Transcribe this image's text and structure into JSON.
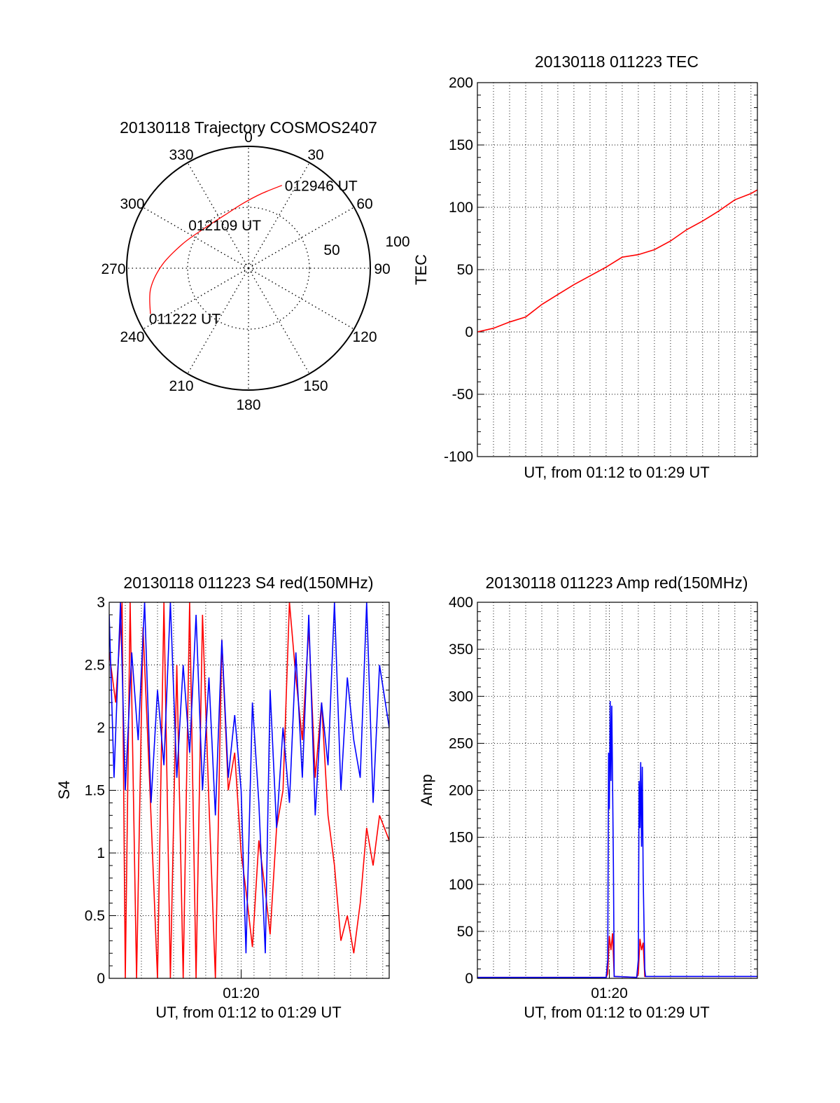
{
  "colors": {
    "red": "#ff0000",
    "blue": "#0000ff",
    "axis": "#000000"
  },
  "chart_data": [
    {
      "id": "trajectory",
      "type": "polar",
      "title": "20130118 Trajectory COSMOS2407",
      "azimuth_labels": [
        "0",
        "30",
        "60",
        "90",
        "120",
        "150",
        "180",
        "210",
        "240",
        "270",
        "300",
        "330"
      ],
      "radial_labels": [
        "50",
        "100"
      ],
      "radius_max": 90,
      "trajectory": [
        {
          "az": 245,
          "zen": 80
        },
        {
          "az": 258,
          "zen": 74
        },
        {
          "az": 272,
          "zen": 64
        },
        {
          "az": 290,
          "zen": 52
        },
        {
          "az": 312,
          "zen": 44
        },
        {
          "az": 336,
          "zen": 43
        },
        {
          "az": 355,
          "zen": 48
        },
        {
          "az": 10,
          "zen": 56
        },
        {
          "az": 22,
          "zen": 66
        }
      ],
      "annotations": [
        {
          "text": "012946 UT",
          "az": 22,
          "zen": 66
        },
        {
          "text": "012109 UT",
          "az": 336,
          "zen": 43
        },
        {
          "text": "011222 UT",
          "az": 245,
          "zen": 80
        }
      ]
    },
    {
      "id": "tec",
      "type": "line",
      "title": "20130118 011223 TEC",
      "xlabel": "UT, from 01:12 to 01:29 UT",
      "ylabel": "TEC",
      "xlim": [
        0,
        17.4
      ],
      "ylim": [
        -100,
        200
      ],
      "yticks": [
        -100,
        -50,
        0,
        50,
        100,
        150,
        200
      ],
      "x_major_ticks": [],
      "series": [
        {
          "color": "#ff0000",
          "x": [
            0,
            1,
            2,
            3,
            4,
            5,
            6,
            7,
            8,
            9,
            10,
            11,
            12,
            13,
            14,
            15,
            16,
            17,
            17.4
          ],
          "y": [
            0,
            3,
            8,
            12,
            22,
            30,
            38,
            45,
            52,
            60,
            62,
            66,
            73,
            82,
            89,
            97,
            106,
            111,
            114
          ]
        }
      ]
    },
    {
      "id": "s4",
      "type": "line",
      "title": "20130118 011223 S4 red(150MHz)",
      "xlabel": "UT, from 01:12 to 01:29 UT",
      "ylabel": "S4",
      "xlim": [
        0,
        17.4
      ],
      "ylim": [
        0,
        3
      ],
      "yticks": [
        "0",
        "0.5",
        "1",
        "1.5",
        "2",
        "2.5",
        "3"
      ],
      "x_major_ticks": [
        {
          "x": 8.2,
          "label": "01:20"
        }
      ],
      "series": [
        {
          "color": "#ff0000",
          "x": [
            0,
            0.4,
            0.8,
            1.0,
            1.3,
            1.7,
            2.1,
            2.5,
            3.0,
            3.4,
            3.8,
            4.2,
            4.6,
            5.0,
            5.4,
            5.8,
            6.2,
            6.6,
            7.0,
            7.4,
            7.8,
            8.2,
            8.5,
            8.9,
            9.3,
            9.7,
            10.0,
            10.4,
            10.8,
            11.2,
            11.6,
            12.0,
            12.4,
            12.8,
            13.2,
            13.6,
            14.0,
            14.4,
            14.8,
            15.2,
            15.6,
            16.0,
            16.4,
            16.8,
            17.4
          ],
          "y": [
            2.6,
            2.2,
            3.0,
            0.0,
            3.0,
            0.0,
            2.8,
            1.6,
            0.0,
            3.0,
            0.0,
            2.5,
            0.0,
            3.0,
            0.0,
            2.9,
            1.4,
            0.0,
            2.7,
            1.5,
            1.8,
            1.0,
            0.7,
            0.25,
            1.1,
            0.7,
            0.35,
            1.2,
            1.5,
            3.0,
            2.4,
            1.9,
            2.8,
            1.6,
            2.2,
            1.3,
            0.9,
            0.3,
            0.5,
            0.2,
            0.6,
            1.2,
            0.9,
            1.3,
            1.1
          ]
        },
        {
          "color": "#0000ff",
          "x": [
            0,
            0.3,
            0.7,
            1.0,
            1.4,
            1.8,
            2.2,
            2.6,
            3.0,
            3.4,
            3.8,
            4.2,
            4.6,
            5.0,
            5.4,
            5.8,
            6.2,
            6.6,
            7.0,
            7.4,
            7.8,
            8.2,
            8.5,
            8.9,
            9.3,
            9.7,
            10.0,
            10.4,
            10.8,
            11.2,
            11.6,
            12.0,
            12.4,
            12.8,
            13.2,
            13.6,
            14.0,
            14.4,
            14.8,
            15.2,
            15.6,
            16.0,
            16.4,
            16.8,
            17.4
          ],
          "y": [
            2.9,
            1.6,
            3.0,
            1.5,
            2.6,
            1.9,
            3.0,
            1.4,
            2.3,
            1.7,
            3.0,
            1.6,
            2.5,
            1.8,
            2.9,
            1.5,
            2.4,
            1.3,
            2.7,
            1.6,
            2.1,
            1.5,
            0.2,
            2.2,
            1.4,
            0.2,
            2.3,
            1.2,
            2.0,
            1.4,
            2.6,
            1.6,
            2.9,
            1.3,
            2.2,
            1.7,
            3.0,
            1.5,
            2.4,
            1.9,
            1.6,
            3.0,
            1.4,
            2.5,
            2.0
          ]
        }
      ]
    },
    {
      "id": "amp",
      "type": "line",
      "title": "20130118 011223 Amp red(150MHz)",
      "xlabel": "UT, from 01:12 to 01:29 UT",
      "ylabel": "Amp",
      "xlim": [
        0,
        17.4
      ],
      "ylim": [
        0,
        400
      ],
      "yticks": [
        0,
        50,
        100,
        150,
        200,
        250,
        300,
        350,
        400
      ],
      "x_major_ticks": [
        {
          "x": 8.2,
          "label": "01:20"
        }
      ],
      "series": [
        {
          "color": "#ff0000",
          "x": [
            0,
            8.0,
            8.1,
            8.2,
            8.3,
            8.4,
            8.5,
            9.9,
            10.0,
            10.1,
            10.2,
            10.3,
            10.4,
            17.4
          ],
          "y": [
            1,
            1,
            5,
            45,
            30,
            48,
            2,
            1,
            5,
            42,
            30,
            38,
            2,
            2
          ]
        },
        {
          "color": "#0000ff",
          "x": [
            0,
            8.0,
            8.1,
            8.15,
            8.2,
            8.25,
            8.3,
            8.35,
            8.45,
            8.5,
            9.9,
            10.0,
            10.05,
            10.1,
            10.15,
            10.2,
            10.25,
            10.3,
            10.4,
            10.45,
            17.4
          ],
          "y": [
            1,
            1,
            20,
            240,
            180,
            295,
            210,
            290,
            120,
            2,
            1,
            20,
            210,
            160,
            230,
            140,
            225,
            110,
            10,
            2,
            2
          ]
        }
      ]
    }
  ]
}
